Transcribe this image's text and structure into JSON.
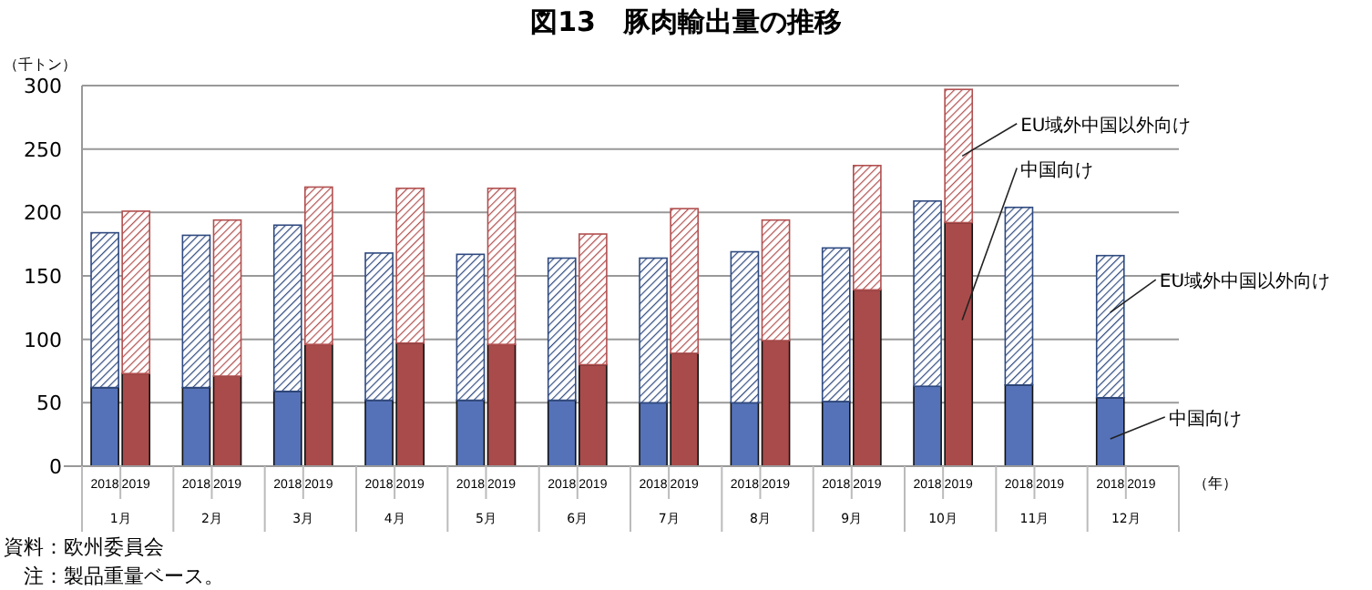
{
  "chart_data": {
    "type": "bar",
    "stacked": true,
    "title": "図13　豚肉輸出量の推移",
    "ylabel": "（千トン）",
    "xlabel": "（年）",
    "categories": [
      "2018",
      "2019",
      "2018",
      "2019",
      "2018",
      "2019",
      "2018",
      "2019",
      "2018",
      "2019",
      "2018",
      "2019",
      "2018",
      "2019",
      "2018",
      "2019",
      "2018",
      "2019",
      "2018",
      "2019",
      "2018",
      "2019",
      "2018",
      "2019"
    ],
    "series": [
      {
        "name": "中国向け",
        "colors": [
          "#5572b8",
          "#a94b4b",
          "#5572b8",
          "#a94b4b",
          "#5572b8",
          "#a94b4b",
          "#5572b8",
          "#a94b4b",
          "#5572b8",
          "#a94b4b",
          "#5572b8",
          "#a94b4b",
          "#5572b8",
          "#a94b4b",
          "#5572b8",
          "#a94b4b",
          "#5572b8",
          "#a94b4b",
          "#5572b8",
          "#a94b4b",
          "#5572b8",
          null,
          "#5572b8",
          null
        ],
        "values": [
          62,
          73,
          62,
          71,
          59,
          96,
          52,
          97,
          52,
          96,
          52,
          80,
          50,
          89,
          50,
          99,
          51,
          139,
          63,
          192,
          64,
          null,
          54,
          null
        ]
      },
      {
        "name": "EU域外中国以外向け",
        "colors": [
          "#2f4a80",
          "#b24f4f",
          "#2f4a80",
          "#b24f4f",
          "#2f4a80",
          "#b24f4f",
          "#2f4a80",
          "#b24f4f",
          "#2f4a80",
          "#b24f4f",
          "#2f4a80",
          "#b24f4f",
          "#2f4a80",
          "#b24f4f",
          "#2f4a80",
          "#b24f4f",
          "#2f4a80",
          "#b24f4f",
          "#2f4a80",
          "#b24f4f",
          "#2f4a80",
          null,
          "#2f4a80",
          null
        ],
        "values": [
          122,
          128,
          120,
          123,
          131,
          124,
          116,
          122,
          115,
          123,
          112,
          103,
          114,
          114,
          119,
          95,
          121,
          98,
          146,
          105,
          140,
          null,
          112,
          null
        ]
      }
    ],
    "ylim": [
      0,
      300
    ],
    "yticks": [
      0,
      50,
      100,
      150,
      200,
      250,
      300
    ],
    "grid": "y",
    "annotations": [
      {
        "text": "1月"
      },
      {
        "text": "2月"
      },
      {
        "text": "3月"
      },
      {
        "text": "4月"
      },
      {
        "text": "5月"
      },
      {
        "text": "6月"
      },
      {
        "text": "7月"
      },
      {
        "text": "8月"
      },
      {
        "text": "9月"
      },
      {
        "text": "10月"
      },
      {
        "text": "11月"
      },
      {
        "text": "12月"
      },
      "資料：欧州委員会",
      "　注：製品重量ベース。"
    ]
  }
}
